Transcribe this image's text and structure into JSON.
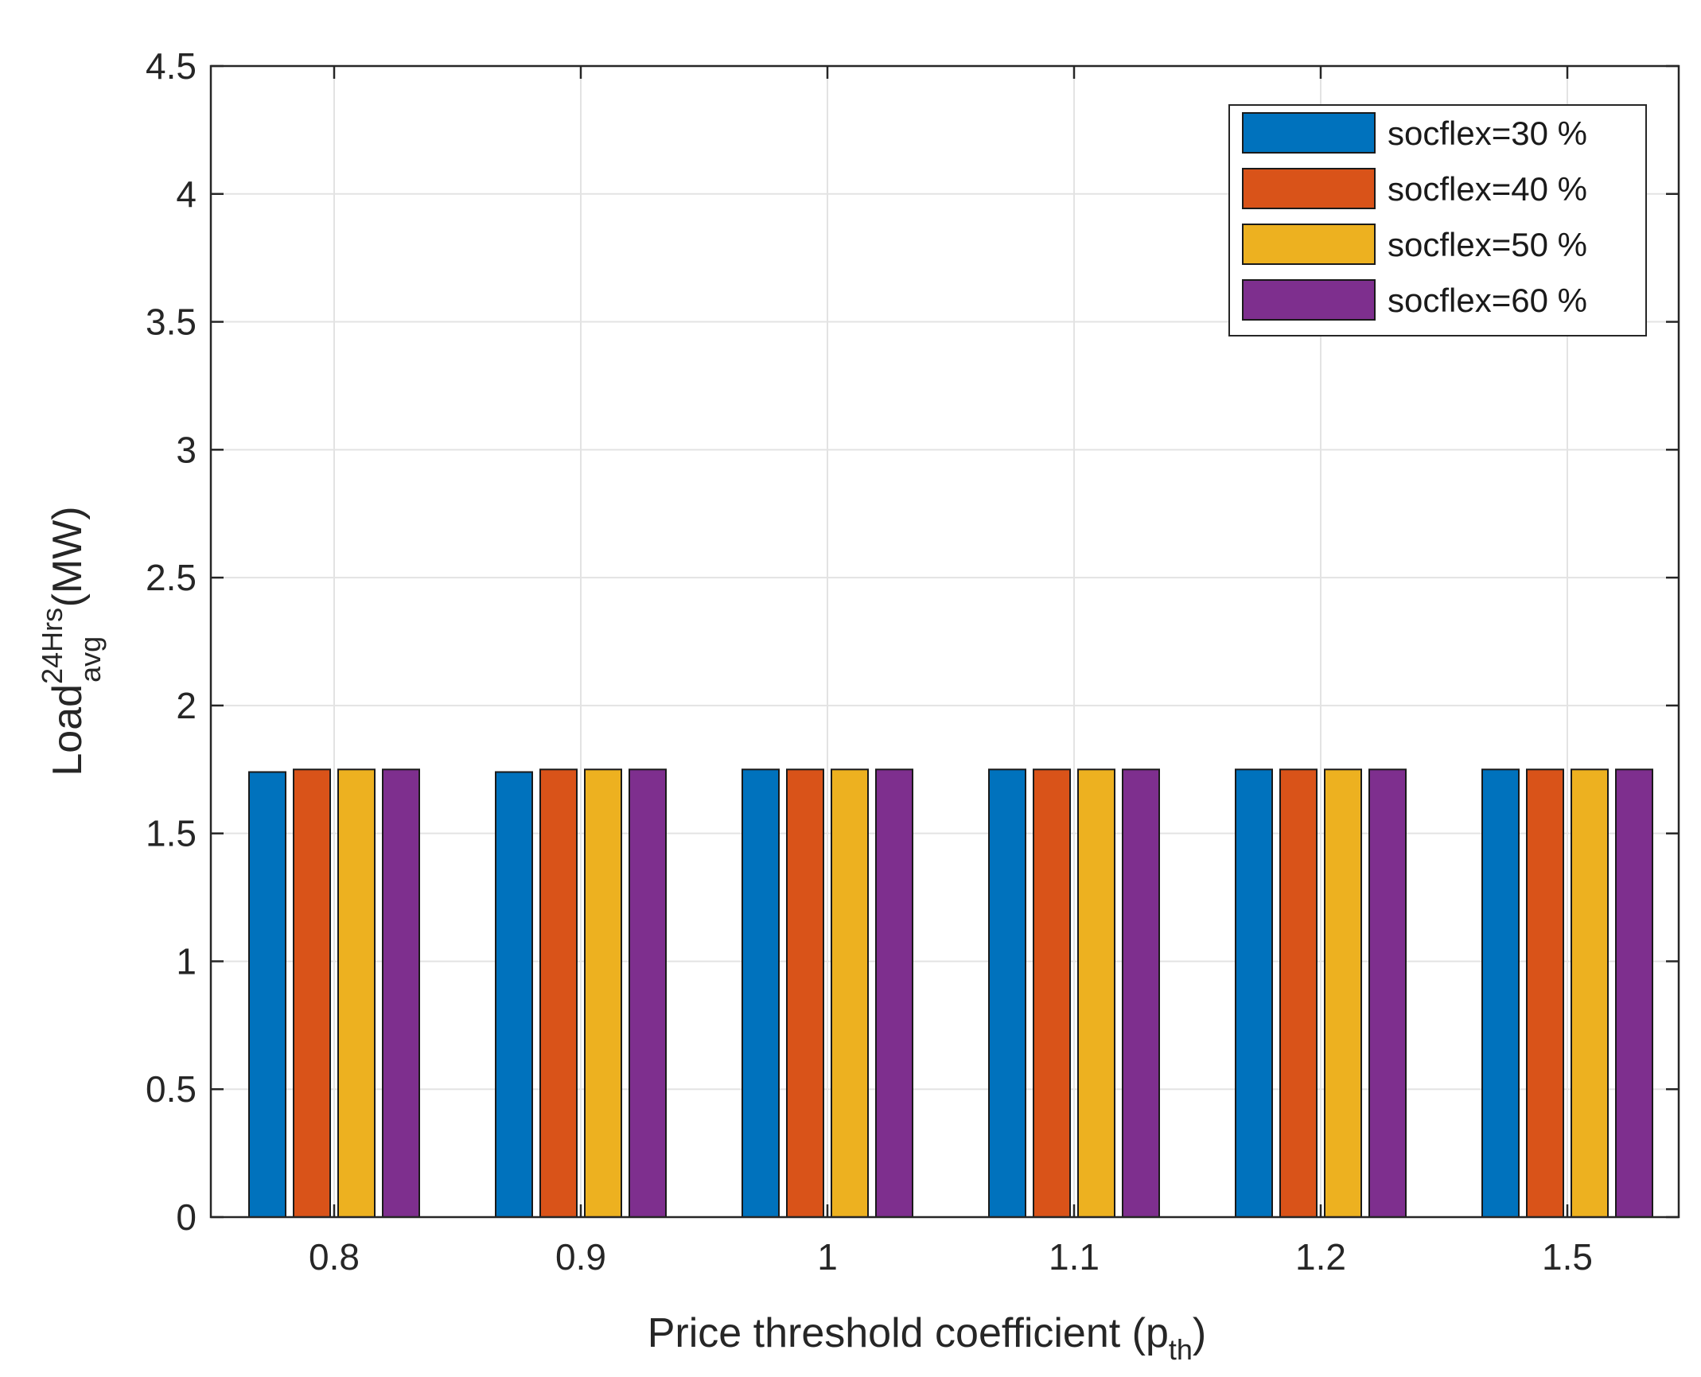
{
  "chart_data": {
    "type": "bar",
    "categories": [
      "0.8",
      "0.9",
      "1",
      "1.1",
      "1.2",
      "1.5"
    ],
    "series": [
      {
        "name": "socflex=30 %",
        "color": "#0072BD",
        "values": [
          1.74,
          1.74,
          1.75,
          1.75,
          1.75,
          1.75
        ]
      },
      {
        "name": "socflex=40 %",
        "color": "#D95319",
        "values": [
          1.75,
          1.75,
          1.75,
          1.75,
          1.75,
          1.75
        ]
      },
      {
        "name": "socflex=50 %",
        "color": "#EDB120",
        "values": [
          1.75,
          1.75,
          1.75,
          1.75,
          1.75,
          1.75
        ]
      },
      {
        "name": "socflex=60 %",
        "color": "#7E2F8E",
        "values": [
          1.75,
          1.75,
          1.75,
          1.75,
          1.75,
          1.75
        ]
      }
    ],
    "yticks": [
      "0",
      "0.5",
      "1",
      "1.5",
      "2",
      "2.5",
      "3",
      "3.5",
      "4",
      "4.5"
    ],
    "ylim": [
      0,
      4.5
    ],
    "grid": true,
    "legend_position": "top-right",
    "xlabel": {
      "main": "Price threshold coefficient (p",
      "sub": "th",
      "close": ")"
    },
    "ylabel": {
      "main": "Load",
      "sup": "24Hrs",
      "sub": "avg",
      "rest": " (MW)"
    }
  }
}
